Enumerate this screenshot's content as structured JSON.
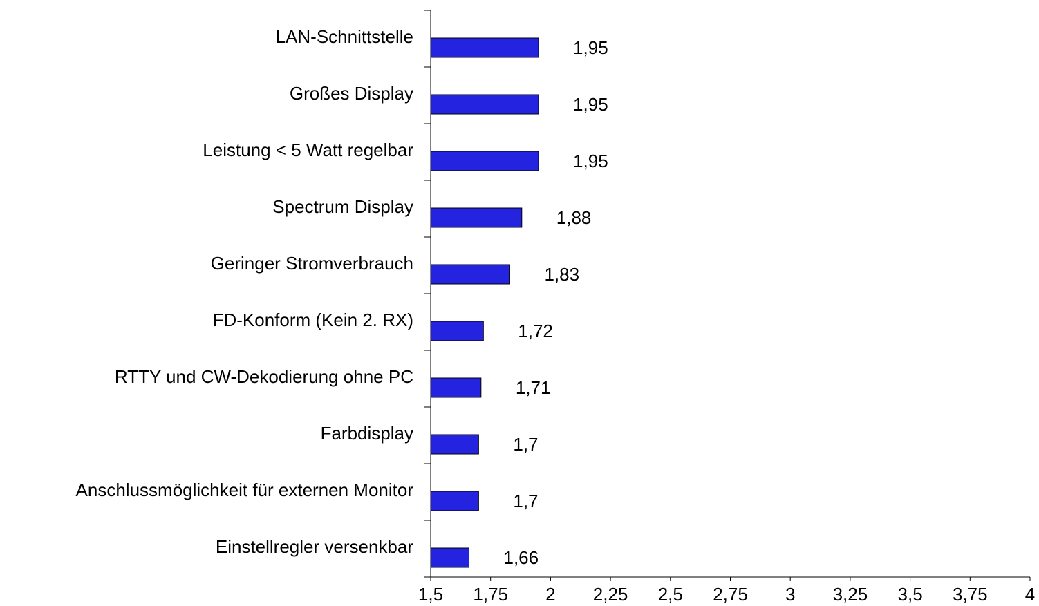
{
  "chart_data": {
    "type": "bar",
    "orientation": "horizontal",
    "categories": [
      "LAN-Schnittstelle",
      "Großes Display",
      "Leistung < 5 Watt regelbar",
      "Spectrum Display",
      "Geringer Stromverbrauch",
      "FD-Konform (Kein 2. RX)",
      "RTTY und CW-Dekodierung ohne PC",
      "Farbdisplay",
      "Anschlussmöglichkeit für externen Monitor",
      "Einstellregler versenkbar"
    ],
    "values": [
      1.95,
      1.95,
      1.95,
      1.88,
      1.83,
      1.72,
      1.71,
      1.7,
      1.7,
      1.66
    ],
    "value_labels": [
      "1,95",
      "1,95",
      "1,95",
      "1,88",
      "1,83",
      "1,72",
      "1,71",
      "1,7",
      "1,7",
      "1,66"
    ],
    "color": "#2424e0",
    "xlim": [
      1.5,
      4
    ],
    "xticks": [
      {
        "value": 1.5,
        "label": "1,5"
      },
      {
        "value": 1.75,
        "label": "1,75"
      },
      2,
      {
        "value": 2.25,
        "label": "2,25"
      },
      {
        "value": 2.5,
        "label": "2,5"
      },
      {
        "value": 2.75,
        "label": "2,75"
      },
      3,
      {
        "value": 3.25,
        "label": "3,25"
      },
      {
        "value": 3.5,
        "label": "3,5"
      },
      {
        "value": 3.75,
        "label": "3,75"
      },
      4
    ],
    "grid": false
  }
}
